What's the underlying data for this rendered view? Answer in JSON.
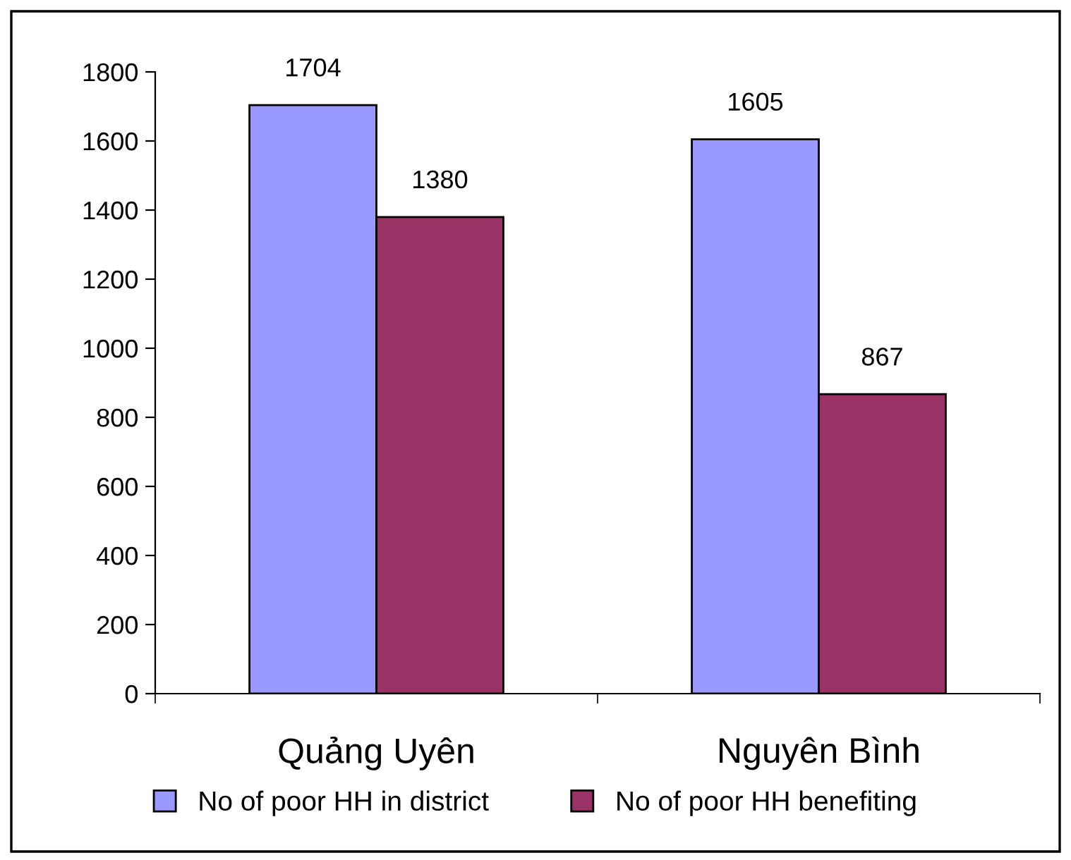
{
  "chart_data": {
    "type": "bar",
    "categories": [
      "Quảng Uyên",
      "Nguyên Bình"
    ],
    "series": [
      {
        "name": "No of poor HH in district",
        "color": "#9999ff",
        "values": [
          1704,
          1605
        ]
      },
      {
        "name": "No of poor HH benefiting",
        "color": "#993366",
        "values": [
          1380,
          867
        ]
      }
    ],
    "ylim": [
      0,
      1800
    ],
    "yticks": [
      0,
      200,
      400,
      600,
      800,
      1000,
      1200,
      1400,
      1600,
      1800
    ],
    "data_labels": true,
    "legend": "bottom",
    "grid": false
  }
}
